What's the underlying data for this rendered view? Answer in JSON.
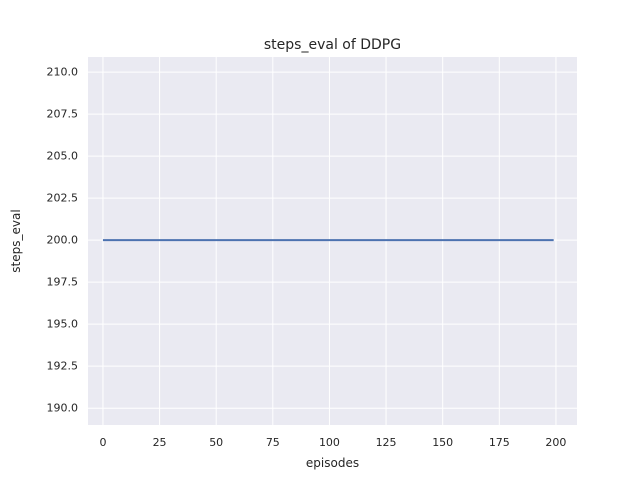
{
  "figure": {
    "background": "#ffffff"
  },
  "chart_data": {
    "type": "line",
    "title": "steps_eval of DDPG",
    "xlabel": "episodes",
    "ylabel": "steps_eval",
    "x_ticks": [
      0,
      25,
      50,
      75,
      100,
      125,
      150,
      175,
      200
    ],
    "y_ticks": [
      190.0,
      192.5,
      195.0,
      197.5,
      200.0,
      202.5,
      205.0,
      207.5,
      210.0
    ],
    "y_tick_decimals": 1,
    "xlim": [
      -6.6,
      209.3
    ],
    "ylim": [
      189.0,
      210.9
    ],
    "grid": true,
    "legend_position": "none",
    "series": [
      {
        "name": "steps_eval of DDPG",
        "x": [
          0,
          199
        ],
        "y": [
          200,
          200
        ],
        "color": "#4c72b0",
        "linewidth": 2
      }
    ],
    "style": {
      "plot_bg": "#eaeaf2",
      "grid_color": "#ffffff",
      "text_color": "#262626",
      "fig_bg": "#ffffff"
    }
  }
}
